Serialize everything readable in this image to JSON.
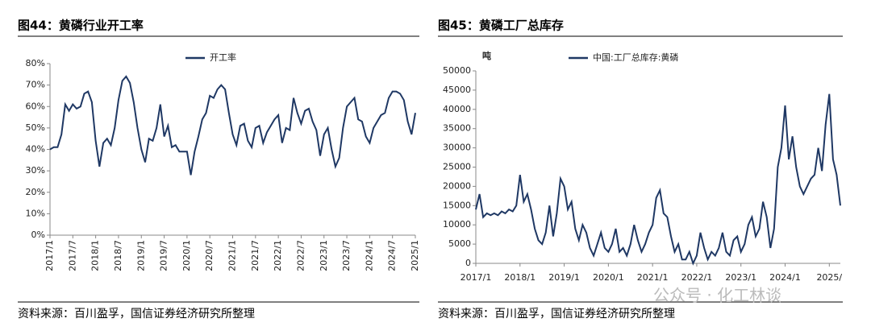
{
  "chart_data": [
    {
      "type": "line",
      "title": "图44：黄磷行业开工率",
      "source": "资料来源：百川盈孚，国信证券经济研究所整理",
      "categories": [
        "2017/1",
        null,
        null,
        null,
        null,
        null,
        "2017/7",
        null,
        null,
        null,
        null,
        null,
        "2018/1",
        null,
        null,
        null,
        null,
        null,
        "2018/7",
        null,
        null,
        null,
        null,
        null,
        "2019/1",
        null,
        null,
        null,
        null,
        null,
        "2019/7",
        null,
        null,
        null,
        null,
        null,
        "2020/1",
        null,
        null,
        null,
        null,
        null,
        "2020/7",
        null,
        null,
        null,
        null,
        null,
        "2021/1",
        null,
        null,
        null,
        null,
        null,
        "2021/7",
        null,
        null,
        null,
        null,
        null,
        "2022/1",
        null,
        null,
        null,
        null,
        null,
        "2022/7",
        null,
        null,
        null,
        null,
        null,
        "2023/1",
        null,
        null,
        null,
        null,
        null,
        "2023/7",
        null,
        null,
        null,
        null,
        null,
        "2024/1",
        null,
        null,
        null,
        null,
        null,
        "2024/7",
        null,
        null,
        null,
        null,
        null,
        "2025/1"
      ],
      "series": [
        {
          "name": "开工率",
          "color": "#1f3864",
          "values": [
            40,
            41,
            41,
            47,
            61,
            58,
            61,
            59,
            60,
            66,
            67,
            62,
            44,
            32,
            43,
            45,
            42,
            50,
            63,
            72,
            74,
            71,
            62,
            50,
            40,
            34,
            45,
            44,
            50,
            61,
            46,
            51,
            41,
            42,
            39,
            39,
            39,
            28,
            39,
            46,
            54,
            57,
            65,
            64,
            68,
            70,
            68,
            57,
            47,
            42,
            51,
            52,
            44,
            41,
            50,
            51,
            43,
            48,
            51,
            54,
            56,
            43,
            50,
            49,
            64,
            57,
            52,
            58,
            59,
            53,
            49,
            37,
            47,
            50,
            40,
            32,
            36,
            50,
            60,
            62,
            64,
            54,
            53,
            46,
            43,
            50,
            53,
            56,
            57,
            64,
            67,
            67,
            66,
            63,
            53,
            47,
            57
          ]
        }
      ],
      "ylim": [
        0,
        80
      ],
      "yticks": [
        {
          "value": 0,
          "label": "0%"
        },
        {
          "value": 10,
          "label": "10%"
        },
        {
          "value": 20,
          "label": "20%"
        },
        {
          "value": 30,
          "label": "30%"
        },
        {
          "value": 40,
          "label": "40%"
        },
        {
          "value": 50,
          "label": "50%"
        },
        {
          "value": 60,
          "label": "60%"
        },
        {
          "value": 70,
          "label": "70%"
        },
        {
          "value": 80,
          "label": "80%"
        }
      ],
      "grid": false,
      "legend": "top"
    },
    {
      "type": "line",
      "title": "图45：黄磷工厂总库存",
      "source": "资料来源：百川盈孚，国信证券经济研究所整理",
      "y_label": "吨",
      "categories": [
        "2017/1",
        null,
        null,
        null,
        null,
        null,
        null,
        null,
        null,
        null,
        null,
        null,
        "2018/1",
        null,
        null,
        null,
        null,
        null,
        null,
        null,
        null,
        null,
        null,
        null,
        "2019/1",
        null,
        null,
        null,
        null,
        null,
        null,
        null,
        null,
        null,
        null,
        null,
        "2020/1",
        null,
        null,
        null,
        null,
        null,
        null,
        null,
        null,
        null,
        null,
        null,
        "2021/1",
        null,
        null,
        null,
        null,
        null,
        null,
        null,
        null,
        null,
        null,
        null,
        "2022/1",
        null,
        null,
        null,
        null,
        null,
        null,
        null,
        null,
        null,
        null,
        null,
        "2023/1",
        null,
        null,
        null,
        null,
        null,
        null,
        null,
        null,
        null,
        null,
        null,
        "2024/1",
        null,
        null,
        null,
        null,
        null,
        null,
        null,
        null,
        null,
        null,
        null,
        "2025/",
        null,
        null,
        null
      ],
      "series": [
        {
          "name": "中国:工厂总库存:黄磷",
          "color": "#1f3864",
          "values": [
            14000,
            18000,
            12000,
            13000,
            12500,
            13000,
            12500,
            13500,
            13000,
            14000,
            13500,
            15000,
            23000,
            16000,
            18000,
            14000,
            9000,
            6000,
            5000,
            8000,
            15000,
            7000,
            13000,
            22000,
            20000,
            14000,
            16000,
            9000,
            6000,
            10000,
            8000,
            4000,
            2000,
            5000,
            8000,
            4000,
            3000,
            5000,
            9000,
            3000,
            4000,
            2000,
            5000,
            10000,
            6000,
            3000,
            5000,
            8000,
            10000,
            17000,
            19000,
            13000,
            12000,
            7000,
            3000,
            5000,
            1000,
            1000,
            3000,
            0,
            2000,
            8000,
            4000,
            1000,
            3000,
            2000,
            4000,
            8000,
            3000,
            2000,
            6000,
            7000,
            3000,
            5000,
            10000,
            12000,
            7000,
            9000,
            16000,
            12000,
            4000,
            9000,
            25000,
            30000,
            41000,
            27000,
            33000,
            25000,
            20000,
            18000,
            20000,
            22000,
            23000,
            30000,
            24000,
            36000,
            44000,
            27000,
            23000,
            15000
          ]
        }
      ],
      "ylim": [
        0,
        50000
      ],
      "yticks": [
        0,
        5000,
        10000,
        15000,
        20000,
        25000,
        30000,
        35000,
        40000,
        45000,
        50000
      ],
      "grid": false,
      "legend": "top"
    }
  ],
  "watermark": "公众号 · 化工林谈"
}
